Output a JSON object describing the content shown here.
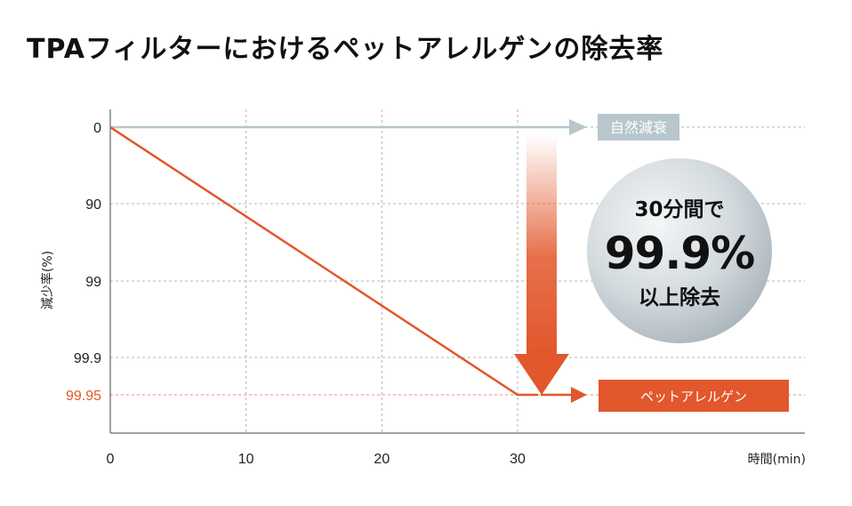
{
  "title": "TPAフィルターにおけるペットアレルゲンの除去率",
  "colors": {
    "natural": "#b8c6cd",
    "allergen": "#e2572b",
    "grid": "#b5b5b5",
    "axis": "#444444",
    "text": "#222222"
  },
  "chart_data": {
    "type": "line",
    "xlabel": "時間(min)",
    "ylabel": "減少率(%)",
    "x_ticks": [
      0,
      10,
      20,
      30
    ],
    "y_ticks": [
      "0",
      "90",
      "99",
      "99.9",
      "99.95"
    ],
    "y_scale": "log-reduction (categorical ticks)",
    "grid": true,
    "series": [
      {
        "name": "自然減衰",
        "color": "#b8c6cd",
        "x": [
          0,
          30
        ],
        "y": [
          "0",
          "0"
        ]
      },
      {
        "name": "ペットアレルゲン",
        "color": "#e2572b",
        "x": [
          0,
          30,
          31.5
        ],
        "y": [
          "0",
          "99.95",
          "99.95"
        ]
      }
    ],
    "highlighted_tick": "99.95"
  },
  "callout": {
    "line1": "30分間で",
    "line2": "99.9%",
    "line3": "以上除去"
  },
  "labels": {
    "natural": "自然減衰",
    "allergen": "ペットアレルゲン"
  }
}
